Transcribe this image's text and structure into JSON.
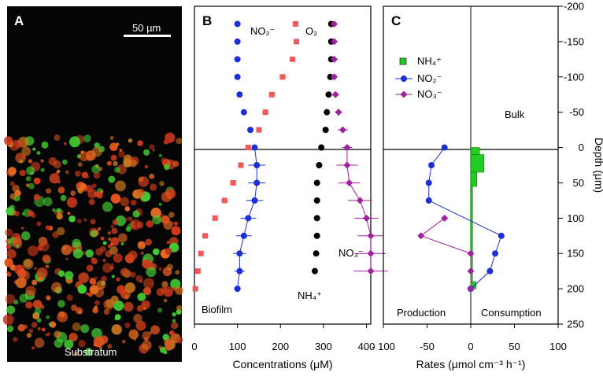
{
  "colors": {
    "o2": "#ee5a5a",
    "no2": "#1c2fd6",
    "no3": "#a020a0",
    "nh4_conc": "#000000",
    "nh4_rate": "#22cc22",
    "micro_bg": "#050505"
  },
  "panel_a": {
    "label": "A",
    "scalebar_text": "50 µm",
    "bottom_text": "Substratum"
  },
  "panel_b": {
    "label": "B",
    "series_labels": {
      "no2": "NO₂⁻",
      "o2": "O₂",
      "no3": "NO₃⁻",
      "nh4": "NH₄⁺"
    },
    "biofilm_label": "Biofilm",
    "x_ticks": [
      "0",
      "100",
      "200",
      "300",
      "400"
    ],
    "xlabel": "Concentrations (μM)"
  },
  "panel_c": {
    "label": "C",
    "legend": {
      "nh4": "NH₄⁺",
      "no2": "NO₂⁻",
      "no3": "NO₃⁻"
    },
    "bulk_label": "Bulk",
    "production_label": "Production",
    "consumption_label": "Consumption",
    "x_ticks": [
      "- 100",
      "-50",
      "0",
      "50",
      "100"
    ],
    "xlabel": "Rates (μmol cm⁻³ h⁻¹)"
  },
  "depth_axis": {
    "label": "Depth (μm)",
    "ticks": [
      "-200",
      "-150",
      "-100",
      "-50",
      "0",
      "50",
      "100",
      "150",
      "200",
      "250"
    ]
  },
  "chart_data": [
    {
      "panel": "B",
      "type": "scatter",
      "xlabel": "Concentrations (μM)",
      "ylabel": "Depth (μm)",
      "xlim": [
        0,
        410
      ],
      "ylim": [
        -200,
        250
      ],
      "y_inverted": true,
      "series": [
        {
          "name": "O₂",
          "key": "o2",
          "marker": "square",
          "points": [
            [
              235,
              -175
            ],
            [
              237,
              -150
            ],
            [
              228,
              -125
            ],
            [
              205,
              -100
            ],
            [
              180,
              -75
            ],
            [
              165,
              -50
            ],
            [
              150,
              -25
            ],
            [
              125,
              0
            ],
            [
              108,
              25
            ],
            [
              90,
              50
            ],
            [
              70,
              75
            ],
            [
              48,
              100
            ],
            [
              25,
              125
            ],
            [
              15,
              150
            ],
            [
              8,
              175
            ],
            [
              2,
              200
            ]
          ],
          "xerr": [
            0,
            0,
            0,
            8,
            8,
            8,
            6,
            6,
            6,
            8,
            8,
            6,
            8,
            6,
            4,
            2
          ]
        },
        {
          "name": "NO₂⁻",
          "key": "no2",
          "marker": "circle",
          "points": [
            [
              100,
              -175
            ],
            [
              100,
              -150
            ],
            [
              100,
              -125
            ],
            [
              100,
              -100
            ],
            [
              105,
              -75
            ],
            [
              115,
              -50
            ],
            [
              130,
              -25
            ],
            [
              140,
              0
            ],
            [
              145,
              25
            ],
            [
              145,
              50
            ],
            [
              140,
              75
            ],
            [
              125,
              100
            ],
            [
              115,
              125
            ],
            [
              105,
              150
            ],
            [
              105,
              175
            ],
            [
              100,
              200
            ]
          ],
          "xerr": [
            0,
            0,
            0,
            0,
            0,
            0,
            0,
            0,
            20,
            20,
            20,
            18,
            18,
            15,
            12,
            8
          ],
          "connected_from_depth": 0
        },
        {
          "name": "NH₄⁺",
          "key": "nh4",
          "marker": "circle",
          "points": [
            [
              318,
              -175
            ],
            [
              318,
              -150
            ],
            [
              318,
              -125
            ],
            [
              316,
              -100
            ],
            [
              312,
              -75
            ],
            [
              308,
              -50
            ],
            [
              305,
              -25
            ],
            [
              295,
              0
            ],
            [
              290,
              25
            ],
            [
              285,
              50
            ],
            [
              285,
              75
            ],
            [
              285,
              100
            ],
            [
              285,
              125
            ],
            [
              283,
              150
            ],
            [
              280,
              175
            ]
          ],
          "xerr": [
            6,
            6,
            6,
            5,
            5,
            5,
            5,
            4,
            4,
            4,
            4,
            4,
            4,
            4,
            4
          ],
          "connected_from_depth": 0
        },
        {
          "name": "NO₃⁻",
          "key": "no3",
          "marker": "diamond",
          "points": [
            [
              325,
              -175
            ],
            [
              325,
              -150
            ],
            [
              325,
              -125
            ],
            [
              325,
              -100
            ],
            [
              328,
              -75
            ],
            [
              335,
              -50
            ],
            [
              345,
              -25
            ],
            [
              355,
              0
            ],
            [
              355,
              25
            ],
            [
              360,
              50
            ],
            [
              385,
              75
            ],
            [
              400,
              100
            ],
            [
              410,
              125
            ],
            [
              410,
              150
            ],
            [
              410,
              175
            ]
          ],
          "xerr": [
            6,
            6,
            6,
            6,
            8,
            8,
            12,
            12,
            25,
            25,
            28,
            28,
            30,
            35,
            40
          ],
          "connected_from_depth": 0
        }
      ]
    },
    {
      "panel": "C",
      "type": "line",
      "xlabel": "Rates (μmol cm⁻³ h⁻¹)",
      "ylabel": "Depth (μm)",
      "xlim": [
        -100,
        100
      ],
      "ylim": [
        -200,
        250
      ],
      "y_inverted": true,
      "series": [
        {
          "name": "NH₄⁺",
          "key": "nh4_rate",
          "type": "bar",
          "bars": [
            [
              0,
              10,
              10
            ],
            [
              10,
              35,
              15
            ],
            [
              35,
              55,
              7
            ],
            [
              55,
              75,
              2
            ],
            [
              75,
              190,
              2
            ],
            [
              190,
              200,
              6
            ]
          ]
        },
        {
          "name": "NO₂⁻",
          "key": "no2",
          "marker": "circle",
          "points": [
            [
              -30,
              0
            ],
            [
              -45,
              25
            ],
            [
              -48,
              50
            ],
            [
              -48,
              75
            ],
            [
              35,
              125
            ],
            [
              28,
              150
            ],
            [
              22,
              175
            ],
            [
              0,
              200
            ]
          ]
        },
        {
          "name": "NO₃⁻",
          "key": "no3",
          "marker": "diamond",
          "points": [
            [
              -30,
              100
            ],
            [
              -57,
              125
            ],
            [
              0,
              150
            ],
            [
              0,
              175
            ],
            [
              0,
              200
            ]
          ]
        }
      ]
    }
  ]
}
